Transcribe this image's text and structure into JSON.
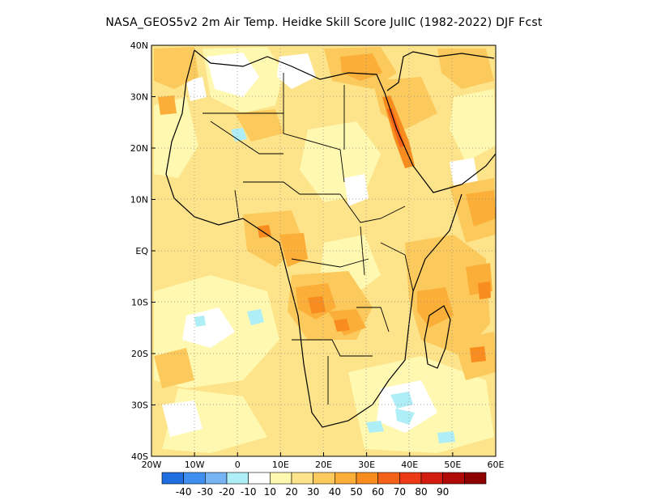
{
  "title": "NASA_GEOS5v2  2m Air Temp. Heidke Skill Score JulIC (1982-2022) DJF Fcst",
  "map": {
    "lon_range": [
      -20,
      60
    ],
    "lat_range": [
      -40,
      40
    ],
    "x_ticks": [
      {
        "value": -20,
        "label": "20W"
      },
      {
        "value": -10,
        "label": "10W"
      },
      {
        "value": 0,
        "label": "0"
      },
      {
        "value": 10,
        "label": "10E"
      },
      {
        "value": 20,
        "label": "20E"
      },
      {
        "value": 30,
        "label": "30E"
      },
      {
        "value": 40,
        "label": "40E"
      },
      {
        "value": 50,
        "label": "50E"
      },
      {
        "value": 60,
        "label": "60E"
      }
    ],
    "y_ticks": [
      {
        "value": 40,
        "label": "40N"
      },
      {
        "value": 30,
        "label": "30N"
      },
      {
        "value": 20,
        "label": "20N"
      },
      {
        "value": 10,
        "label": "10N"
      },
      {
        "value": 0,
        "label": "EQ"
      },
      {
        "value": -10,
        "label": "10S"
      },
      {
        "value": -20,
        "label": "20S"
      },
      {
        "value": -30,
        "label": "30S"
      },
      {
        "value": -40,
        "label": "40S"
      }
    ]
  },
  "colorbar": {
    "colors": [
      "#1f6fe0",
      "#3f8ff0",
      "#76b4f4",
      "#aeeef6",
      "#ffffff",
      "#fff8b0",
      "#fde48a",
      "#fcca5c",
      "#fbae38",
      "#f88c1e",
      "#f4621a",
      "#ec3a16",
      "#d21c10",
      "#b00a08",
      "#8c0000"
    ],
    "labels": [
      "-40",
      "-30",
      "-20",
      "-10",
      "10",
      "20",
      "30",
      "40",
      "50",
      "60",
      "70",
      "80",
      "90"
    ]
  }
}
